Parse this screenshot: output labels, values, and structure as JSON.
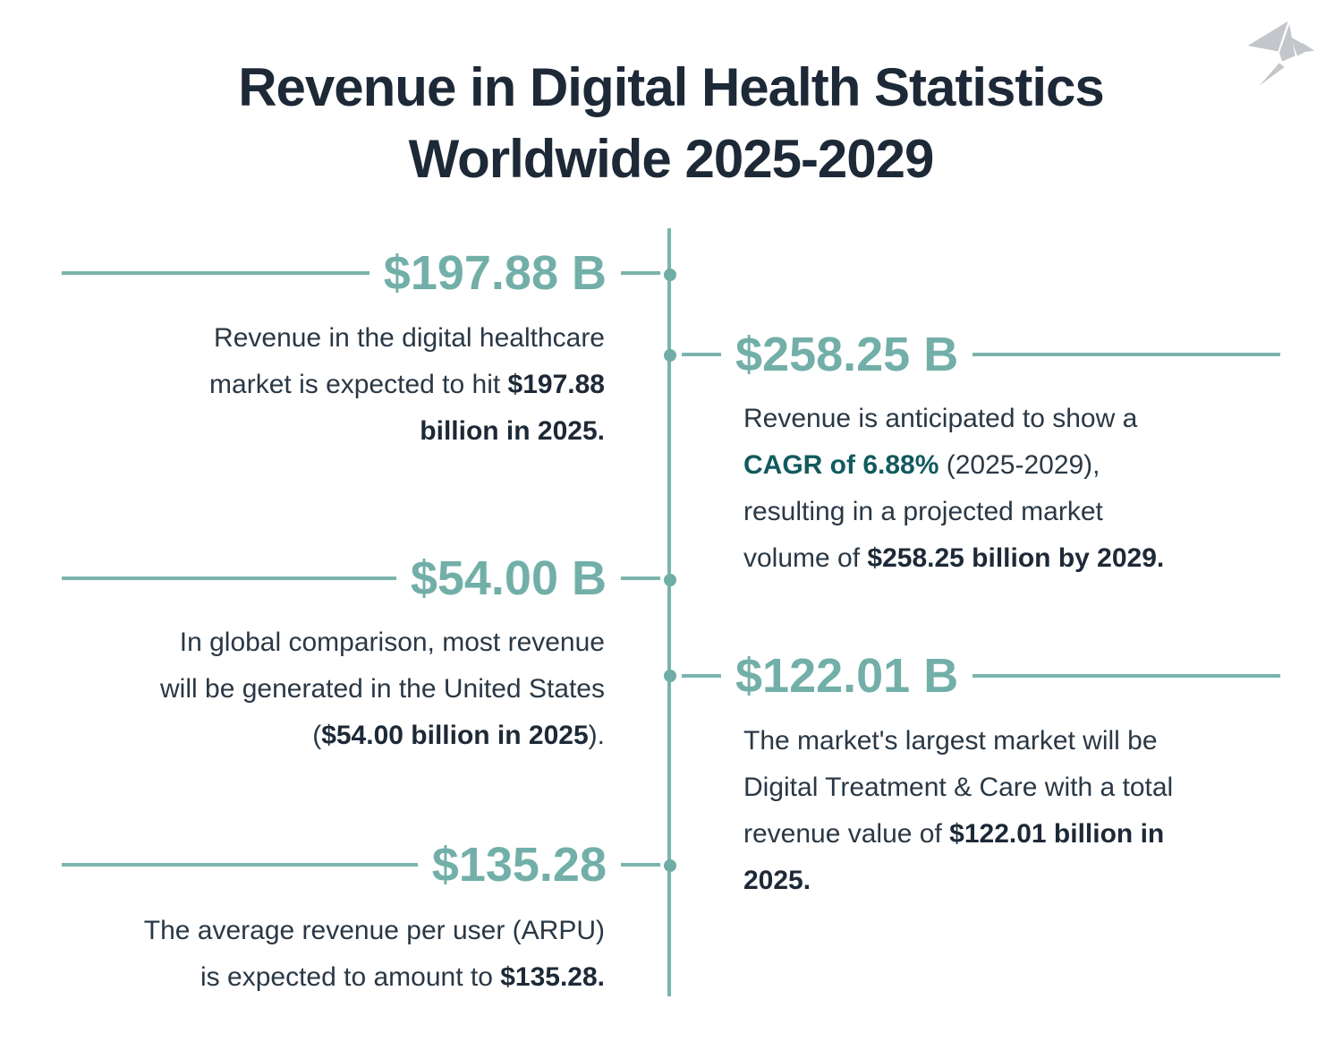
{
  "title": {
    "line1": "Revenue in Digital Health Statistics",
    "line2": "Worldwide 2025-2029"
  },
  "logo": {
    "icon": "origami-bird-icon",
    "color": "#c3c6ca"
  },
  "colors": {
    "accent_teal": "#72afa8",
    "line_teal": "#7ab4ae",
    "dark_teal": "#125a5e",
    "title_navy": "#1d2937",
    "body_text": "#2a3845",
    "background": "#ffffff"
  },
  "stats": {
    "left": [
      {
        "value": "$197.88 B",
        "lines": [
          [
            {
              "text": "Revenue in the digital healthcare",
              "bold": false
            }
          ],
          [
            {
              "text": "market is expected to hit ",
              "bold": false
            },
            {
              "text": "$197.88",
              "bold": true
            }
          ],
          [
            {
              "text": "billion in 2025.",
              "bold": true
            }
          ]
        ]
      },
      {
        "value": "$54.00 B",
        "lines": [
          [
            {
              "text": "In global comparison, most revenue",
              "bold": false
            }
          ],
          [
            {
              "text": "will be generated in the United States",
              "bold": false
            }
          ],
          [
            {
              "text": "(",
              "bold": false
            },
            {
              "text": "$54.00 billion in 2025",
              "bold": true
            },
            {
              "text": ").",
              "bold": false
            }
          ]
        ]
      },
      {
        "value": "$135.28",
        "lines": [
          [
            {
              "text": "The average revenue per user (ARPU)",
              "bold": false
            }
          ],
          [
            {
              "text": "is expected to amount to ",
              "bold": false
            },
            {
              "text": "$135.28.",
              "bold": true
            }
          ]
        ]
      }
    ],
    "right": [
      {
        "value": "$258.25 B",
        "lines": [
          [
            {
              "text": "Revenue is anticipated to show a",
              "bold": false
            }
          ],
          [
            {
              "text": "CAGR of 6.88%",
              "bold": true,
              "color": "dark_teal"
            },
            {
              "text": " (2025-2029),",
              "bold": false
            }
          ],
          [
            {
              "text": "resulting in a projected market",
              "bold": false
            }
          ],
          [
            {
              "text": "volume of ",
              "bold": false
            },
            {
              "text": "$258.25 billion by 2029.",
              "bold": true
            }
          ]
        ]
      },
      {
        "value": "$122.01 B",
        "lines": [
          [
            {
              "text": "The market's largest market will be",
              "bold": false
            }
          ],
          [
            {
              "text": "Digital Treatment & Care with a total",
              "bold": false
            }
          ],
          [
            {
              "text": "revenue value of ",
              "bold": false
            },
            {
              "text": "$122.01 billion in",
              "bold": true
            }
          ],
          [
            {
              "text": "2025.",
              "bold": true
            }
          ]
        ]
      }
    ]
  }
}
